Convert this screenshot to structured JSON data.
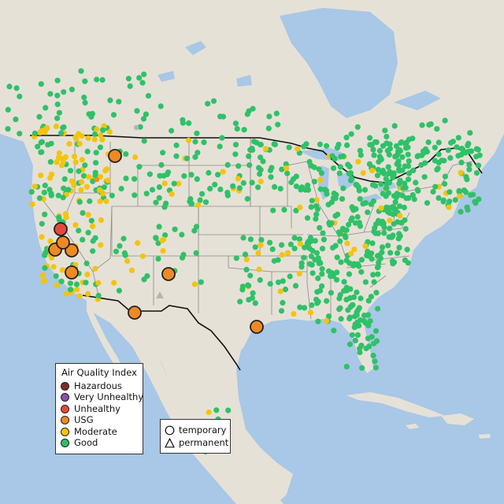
{
  "legend": {
    "title": "Air Quality Index",
    "categories": [
      {
        "label": "Hazardous",
        "color": "#7e2c2c"
      },
      {
        "label": "Very Unhealthy",
        "color": "#8e4ea8"
      },
      {
        "label": "Unhealthy",
        "color": "#e5493a"
      },
      {
        "label": "USG",
        "color": "#ef8a22"
      },
      {
        "label": "Moderate",
        "color": "#f2c40f"
      },
      {
        "label": "Good",
        "color": "#2fc168"
      }
    ]
  },
  "site_types": {
    "temporary": {
      "label": "temporary",
      "icon": "circle-icon"
    },
    "permanent": {
      "label": "permanent",
      "icon": "triangle-icon"
    }
  },
  "colors": {
    "water": "#a9c7e6",
    "land": "#e6e1d7",
    "border": "#111111",
    "state_line": "#8a8a8a"
  },
  "large_markers": [
    {
      "category": "USG",
      "site": "temporary"
    },
    {
      "category": "Unhealthy",
      "site": "temporary"
    },
    {
      "category": "USG",
      "site": "temporary"
    },
    {
      "category": "USG",
      "site": "temporary"
    },
    {
      "category": "USG",
      "site": "temporary"
    },
    {
      "category": "USG",
      "site": "temporary"
    },
    {
      "category": "USG",
      "site": "temporary"
    },
    {
      "category": "USG",
      "site": "temporary"
    },
    {
      "category": "USG",
      "site": "temporary"
    }
  ]
}
